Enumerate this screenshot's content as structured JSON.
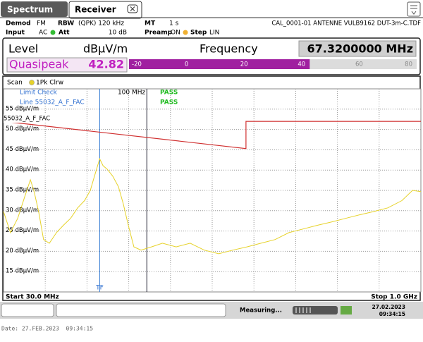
{
  "tabs": [
    "Spectrum",
    "Receiver"
  ],
  "settings": {
    "demod": {
      "label": "Demod",
      "value": "FM"
    },
    "rbw": {
      "label": "RBW",
      "value": "(QPK) 120 kHz"
    },
    "mt": {
      "label": "MT",
      "value": "1 s"
    },
    "transducer": "CAL_0001-01 ANTENNE VULB9162 DUT-3m-C.TDF",
    "input": {
      "label": "Input",
      "value": "AC"
    },
    "att": {
      "label": "Att",
      "value": "10 dB"
    },
    "preamp": {
      "label": "Preamp",
      "value": "ON"
    },
    "step": {
      "label": "Step",
      "value": "LIN"
    }
  },
  "meter": {
    "level_label": "Level",
    "unit": "dBµV/m",
    "frequency_label": "Frequency",
    "frequency": "67.3200000 MHz",
    "detector": "Quasipeak",
    "value": 42.82,
    "lim": [
      -20,
      80
    ],
    "ticks": [
      -20,
      0,
      20,
      40,
      60,
      80
    ]
  },
  "chart_data": {
    "type": "line",
    "header": {
      "scan": "Scan",
      "trace": "1Pk Clrw"
    },
    "limit_check": {
      "title": "Limit Check",
      "line": "Line 55032_A_F_FAC",
      "results": [
        "PASS",
        "PASS"
      ]
    },
    "frequency_line": {
      "value": 100,
      "label": "100 MHz"
    },
    "tf_marker": {
      "value": 67.32,
      "label": "TF"
    },
    "xlim": [
      30,
      1000
    ],
    "xscale": "log",
    "ylim": [
      10,
      60
    ],
    "yticks": [
      {
        "value": 55,
        "label": "55 dBµV/m"
      },
      {
        "value": 50,
        "label": "50 dBµV/m"
      },
      {
        "value": 45,
        "label": "45 dBµV/m"
      },
      {
        "value": 40,
        "label": "40 dBµV/m"
      },
      {
        "value": 35,
        "label": "35 dBµV/m"
      },
      {
        "value": 30,
        "label": "30 dBµV/m"
      },
      {
        "value": 25,
        "label": "25 dBµV/m"
      },
      {
        "value": 20,
        "label": "20 dBµV/m"
      },
      {
        "value": 15,
        "label": "15 dBµV/m"
      }
    ],
    "limit_line": {
      "name": "55032_A_F_FAC",
      "color": "#d03030",
      "x": [
        30,
        230,
        230,
        1000
      ],
      "values": [
        52,
        45.3,
        52,
        52
      ]
    },
    "trace": {
      "color": "#e6d22a",
      "x": [
        30,
        31.8,
        33.8,
        35.8,
        37.6,
        38.7,
        40.3,
        42,
        44.1,
        46.8,
        49.6,
        52.7,
        55.9,
        59.3,
        62.2,
        64.4,
        67.3,
        69.2,
        71.7,
        75.1,
        78.8,
        82.1,
        85.6,
        89.7,
        95.2,
        104,
        114,
        128,
        144,
        162,
        183,
        206,
        232,
        261,
        294,
        330,
        372,
        419,
        471,
        531,
        598,
        673,
        757,
        853,
        932,
        1000
      ],
      "values": [
        29.8,
        24.6,
        28.1,
        33.3,
        37.6,
        35,
        29.8,
        22.9,
        22,
        24.6,
        26.4,
        28.1,
        30.7,
        32.5,
        35,
        38.5,
        42.8,
        41.1,
        40.2,
        38.5,
        35.9,
        31.6,
        26.4,
        21.1,
        20.3,
        21.1,
        22,
        21.1,
        22,
        20.3,
        19.4,
        20.3,
        21.1,
        22,
        22.9,
        24.6,
        25.5,
        26.4,
        27.2,
        28.1,
        29,
        29.8,
        30.7,
        32.5,
        35,
        34.7
      ]
    },
    "start": "Start 30.0 MHz",
    "stop": "Stop 1.0 GHz"
  },
  "status": {
    "state": "Measuring...",
    "date": "27.02.2023",
    "time": "09:34:15"
  },
  "footer": "Date: 27.FEB.2023  09:34:15"
}
